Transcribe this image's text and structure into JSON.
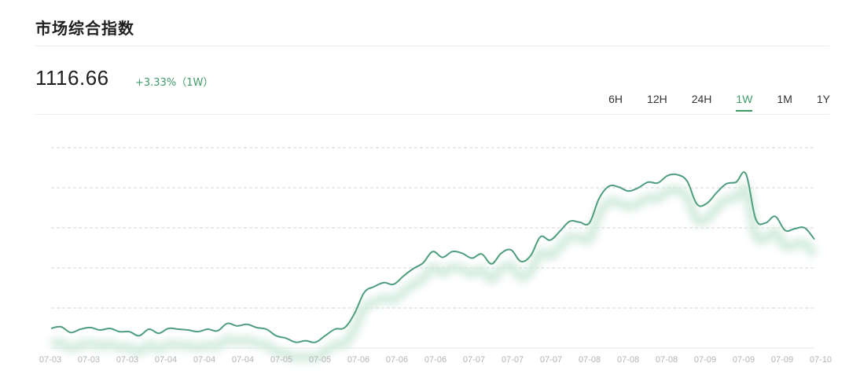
{
  "header": {
    "title": "市场综合指数"
  },
  "summary": {
    "price": "1116.66",
    "change": "+3.33%（1W）"
  },
  "range_tabs": [
    {
      "label": "6H",
      "active": false
    },
    {
      "label": "12H",
      "active": false
    },
    {
      "label": "24H",
      "active": false
    },
    {
      "label": "1W",
      "active": true
    },
    {
      "label": "1M",
      "active": false
    },
    {
      "label": "1Y",
      "active": false
    }
  ],
  "colors": {
    "accent": "#3f9a6a",
    "line": "#4e9e7d",
    "grid": "#d4d4d4",
    "axis_text": "#b3b3b3"
  },
  "chart_data": {
    "type": "line",
    "grid": true,
    "x_tick_labels": [
      "07-03",
      "07-03",
      "07-03",
      "07-04",
      "07-04",
      "07-04",
      "07-05",
      "07-05",
      "07-06",
      "07-06",
      "07-06",
      "07-07",
      "07-07",
      "07-07",
      "07-08",
      "07-08",
      "07-08",
      "07-09",
      "07-09",
      "07-09",
      "07-10"
    ],
    "series": [
      {
        "values": [
          26,
          28,
          21,
          25,
          27,
          24,
          26,
          22,
          22,
          17,
          25,
          20,
          26,
          25,
          24,
          22,
          25,
          23,
          32,
          29,
          31,
          27,
          25,
          17,
          14,
          9,
          11,
          9,
          17,
          25,
          27,
          44,
          70,
          77,
          82,
          80,
          90,
          99,
          106,
          120,
          113,
          120,
          118,
          112,
          117,
          105,
          118,
          122,
          108,
          115,
          138,
          134,
          145,
          157,
          156,
          155,
          185,
          200,
          199,
          194,
          198,
          205,
          204,
          213,
          214,
          206,
          178,
          179,
          192,
          203,
          205,
          215,
          160,
          155,
          163,
          146,
          148,
          149,
          135
        ]
      }
    ]
  }
}
